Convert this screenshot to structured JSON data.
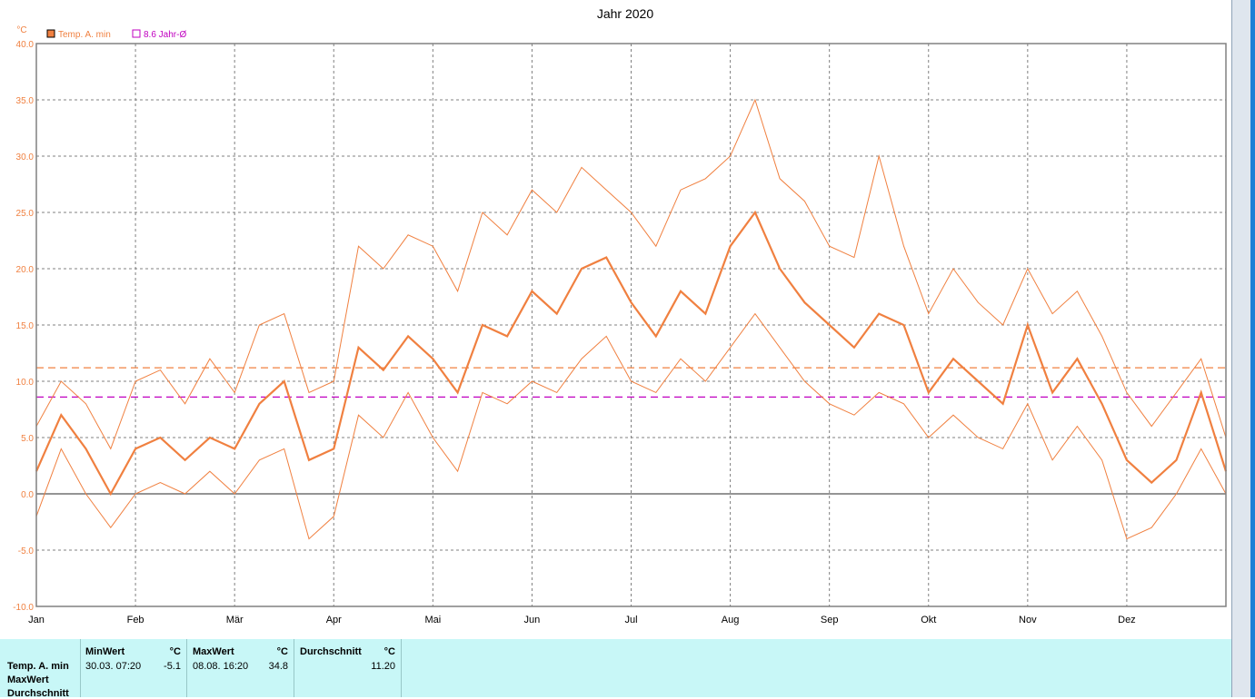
{
  "chart_data": {
    "type": "line",
    "title": "Jahr 2020",
    "ylabel": "°C",
    "ylim": [
      -10,
      40
    ],
    "yticks": [
      "40.0",
      "35.0",
      "30.0",
      "25.0",
      "20.0",
      "15.0",
      "10.0",
      "5.0",
      "0.0",
      "-5.0",
      "-10.0"
    ],
    "xticks": [
      "Jan",
      "Feb",
      "Mär",
      "Apr",
      "Mai",
      "Jun",
      "Jul",
      "Aug",
      "Sep",
      "Okt",
      "Nov",
      "Dez"
    ],
    "legend": [
      {
        "name": "Temp. A. min",
        "color": "#f08040"
      },
      {
        "name": "8.6 Jahr-Ø",
        "color": "#c000c0"
      }
    ],
    "reference_lines": [
      {
        "value": 8.6,
        "color": "#c000c0",
        "style": "dashed"
      },
      {
        "value": 11.2,
        "color": "#f08040",
        "style": "dashed"
      }
    ],
    "series": [
      {
        "name": "Temp. A. min",
        "color": "#f08040",
        "x_months": [
          0,
          0.25,
          0.5,
          0.75,
          1,
          1.25,
          1.5,
          1.75,
          2,
          2.25,
          2.5,
          2.75,
          3,
          3.25,
          3.5,
          3.75,
          4,
          4.25,
          4.5,
          4.75,
          5,
          5.25,
          5.5,
          5.75,
          6,
          6.25,
          6.5,
          6.75,
          7,
          7.25,
          7.5,
          7.75,
          8,
          8.25,
          8.5,
          8.75,
          9,
          9.25,
          9.5,
          9.75,
          10,
          10.25,
          10.5,
          10.75,
          11,
          11.25,
          11.5,
          11.75,
          12
        ],
        "mean": [
          2,
          7,
          4,
          0,
          4,
          5,
          3,
          5,
          4,
          8,
          10,
          3,
          4,
          13,
          11,
          14,
          12,
          9,
          15,
          14,
          18,
          16,
          20,
          21,
          17,
          14,
          18,
          16,
          22,
          25,
          20,
          17,
          15,
          13,
          16,
          15,
          9,
          12,
          10,
          8,
          15,
          9,
          12,
          8,
          3,
          1,
          3,
          9,
          2
        ],
        "upper": [
          6,
          10,
          8,
          4,
          10,
          11,
          8,
          12,
          9,
          15,
          16,
          9,
          10,
          22,
          20,
          23,
          22,
          18,
          25,
          23,
          27,
          25,
          29,
          27,
          25,
          22,
          27,
          28,
          30,
          35,
          28,
          26,
          22,
          21,
          30,
          22,
          16,
          20,
          17,
          15,
          20,
          16,
          18,
          14,
          9,
          6,
          9,
          12,
          5
        ],
        "lower": [
          -2,
          4,
          0,
          -3,
          0,
          1,
          0,
          2,
          0,
          3,
          4,
          -4,
          -2,
          7,
          5,
          9,
          5,
          2,
          9,
          8,
          10,
          9,
          12,
          14,
          10,
          9,
          12,
          10,
          13,
          16,
          13,
          10,
          8,
          7,
          9,
          8,
          5,
          7,
          5,
          4,
          8,
          3,
          6,
          3,
          -4,
          -3,
          0,
          4,
          0
        ]
      }
    ]
  },
  "stats": {
    "row_labels": [
      "Temp. A. min",
      "MaxWert",
      "Durchschnitt"
    ],
    "min": {
      "header": "MinWert",
      "unit": "°C",
      "datetime": "30.03.  07:20",
      "value": "-5.1"
    },
    "max": {
      "header": "MaxWert",
      "unit": "°C",
      "datetime": "08.08.  16:20",
      "value": "34.8"
    },
    "avg": {
      "header": "Durchschnitt",
      "unit": "°C",
      "value": "11.20"
    }
  }
}
